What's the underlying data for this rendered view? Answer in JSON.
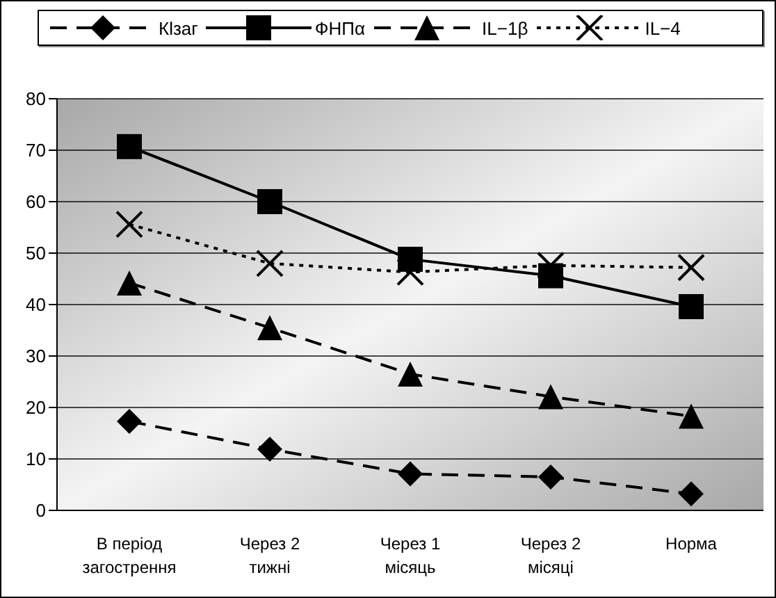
{
  "chart_data": {
    "type": "line",
    "categories": [
      "В період загострення",
      "Через 2 тижні",
      "Через 1 місяць",
      "Через 2 місяці",
      "Норма"
    ],
    "series": [
      {
        "name": "Кlзаг",
        "color": "#000000",
        "marker": "diamond",
        "line_style": "dashed",
        "values": [
          17.3,
          11.9,
          7.1,
          6.5,
          3.2
        ]
      },
      {
        "name": "ФНПα",
        "color": "#000000",
        "marker": "square",
        "line_style": "solid",
        "values": [
          70.7,
          60.0,
          48.8,
          45.6,
          39.6
        ]
      },
      {
        "name": "IL−1β",
        "color": "#000000",
        "marker": "triangle",
        "line_style": "dashed",
        "values": [
          44.2,
          35.5,
          26.5,
          22.1,
          18.3
        ]
      },
      {
        "name": "IL−4",
        "color": "#000000",
        "marker": "cross",
        "line_style": "dotted",
        "values": [
          55.6,
          48.0,
          46.3,
          47.6,
          47.2
        ]
      }
    ],
    "ylim": [
      0,
      80
    ],
    "yticks": [
      0,
      10,
      20,
      30,
      40,
      50,
      60,
      70,
      80
    ],
    "grid": "y",
    "legend": "top"
  }
}
